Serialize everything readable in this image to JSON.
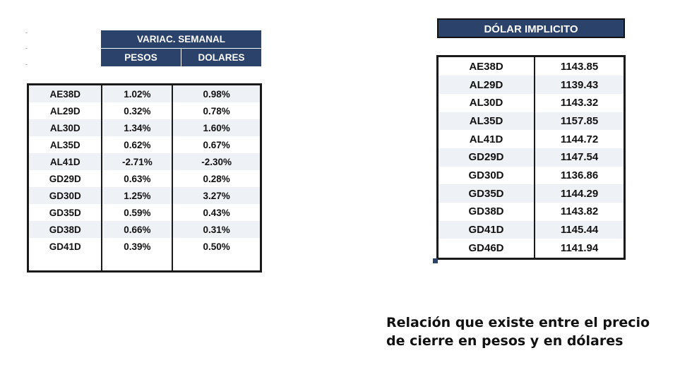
{
  "weekly_variation": {
    "title": "VARIAC. SEMANAL",
    "col_pesos": "PESOS",
    "col_dolares": "DOLARES",
    "rows": [
      {
        "bond": "AE38D",
        "pesos": "1.02%",
        "dolares": "0.98%"
      },
      {
        "bond": "AL29D",
        "pesos": "0.32%",
        "dolares": "0.78%"
      },
      {
        "bond": "AL30D",
        "pesos": "1.34%",
        "dolares": "1.60%"
      },
      {
        "bond": "AL35D",
        "pesos": "0.62%",
        "dolares": "0.67%"
      },
      {
        "bond": "AL41D",
        "pesos": "-2.71%",
        "dolares": "-2.30%"
      },
      {
        "bond": "GD29D",
        "pesos": "0.63%",
        "dolares": "0.28%"
      },
      {
        "bond": "GD30D",
        "pesos": "1.25%",
        "dolares": "3.27%"
      },
      {
        "bond": "GD35D",
        "pesos": "0.59%",
        "dolares": "0.43%"
      },
      {
        "bond": "GD38D",
        "pesos": "0.66%",
        "dolares": "0.31%"
      },
      {
        "bond": "GD41D",
        "pesos": "0.39%",
        "dolares": "0.50%"
      }
    ]
  },
  "implicit_dollar": {
    "title": "DÓLAR IMPLICITO",
    "rows": [
      {
        "bond": "AE38D",
        "value": "1143.85"
      },
      {
        "bond": "AL29D",
        "value": "1139.43"
      },
      {
        "bond": "AL30D",
        "value": "1143.32"
      },
      {
        "bond": "AL35D",
        "value": "1157.85"
      },
      {
        "bond": "AL41D",
        "value": "1144.72"
      },
      {
        "bond": "GD29D",
        "value": "1147.54"
      },
      {
        "bond": "GD30D",
        "value": "1136.86"
      },
      {
        "bond": "GD35D",
        "value": "1144.29"
      },
      {
        "bond": "GD38D",
        "value": "1143.82"
      },
      {
        "bond": "GD41D",
        "value": "1145.44"
      },
      {
        "bond": "GD46D",
        "value": "1141.94"
      }
    ]
  },
  "caption": {
    "line1": "Relación que existe entre el precio",
    "line2": "de cierre en pesos y en dólares"
  },
  "colors": {
    "header_bg": "#2b426a",
    "band_row": "#eef2f7"
  }
}
